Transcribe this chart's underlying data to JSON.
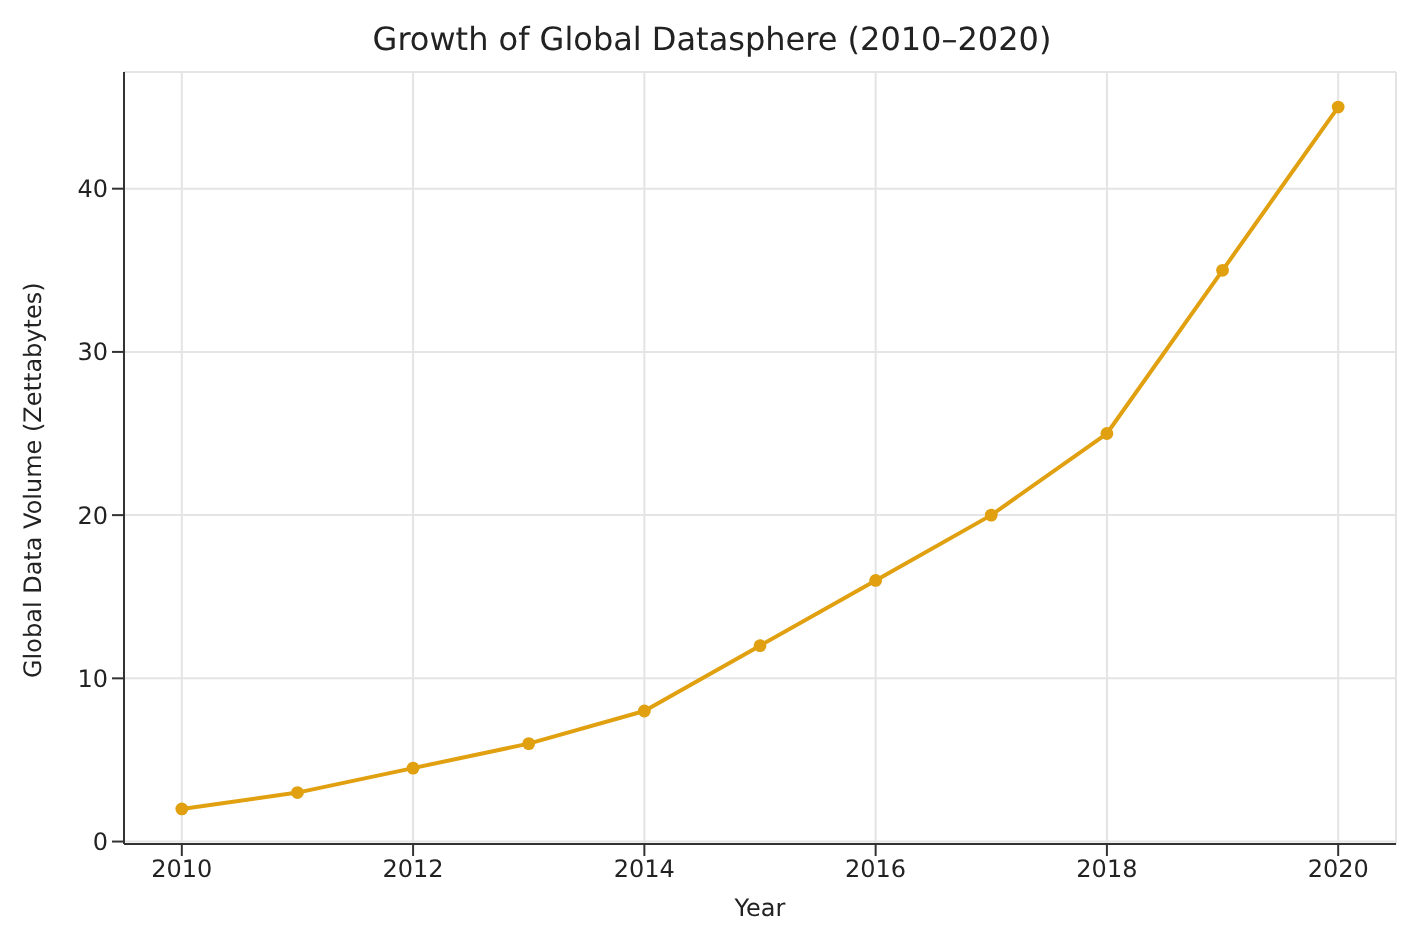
{
  "chart_data": {
    "type": "line",
    "title": "Growth of Global Datasphere (2010–2020)",
    "xlabel": "Year",
    "ylabel": "Global Data Volume (Zettabytes)",
    "x": [
      2010,
      2011,
      2012,
      2013,
      2014,
      2015,
      2016,
      2017,
      2018,
      2019,
      2020
    ],
    "series": [
      {
        "color": "#e0a010",
        "values": [
          2,
          3,
          4.5,
          6,
          8,
          12,
          16,
          20,
          25,
          35,
          45
        ]
      }
    ],
    "xlim": [
      2009.5,
      2020.5
    ],
    "xticks": [
      2010,
      2012,
      2014,
      2016,
      2018,
      2020
    ],
    "ylim": [
      -0.15,
      47.15
    ],
    "yticks": [
      0,
      10,
      20,
      30,
      40
    ],
    "grid": true,
    "marker": "circle",
    "line_style": "solid",
    "legend": false
  }
}
